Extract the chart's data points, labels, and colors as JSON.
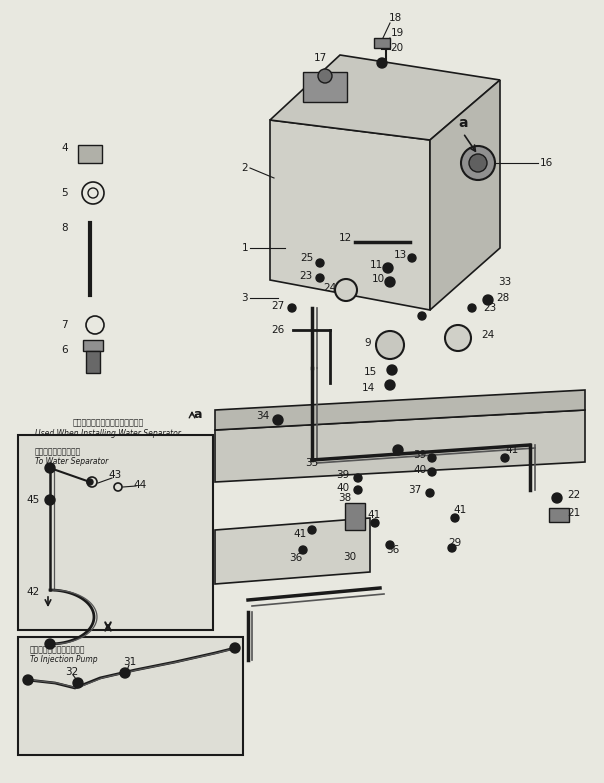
{
  "bg_color": "#e8e8e0",
  "line_color": "#1a1a1a",
  "figsize": [
    6.04,
    7.83
  ],
  "dpi": 100,
  "box1_note_ja": "ウォータセパレータ設置時に使用",
  "box1_note_en": "Used When Installing Water Separator",
  "box1_label_ja": "ウォータセパレータへ",
  "box1_label_en": "To Water Separator",
  "box2_label_ja": "インジェクションポンプへ",
  "box2_label_en": "To Injection Pump",
  "arrow_label": "a"
}
